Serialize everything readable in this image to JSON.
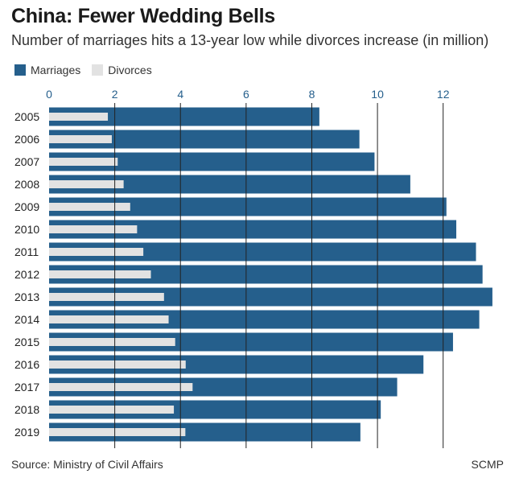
{
  "title": "China: Fewer Wedding Bells",
  "subtitle": "Number of marriages hits a 13-year low while divorces increase (in million)",
  "source": "Source: Ministry of Civil Affairs",
  "credit": "SCMP",
  "colors": {
    "marriages": "#255f8c",
    "divorces": "#e2e2e2",
    "gridline": "#222222",
    "tick_text": "#255f8c",
    "category_text": "#222222"
  },
  "chart_data": {
    "type": "bar",
    "orientation": "horizontal",
    "title": "China: Fewer Wedding Bells",
    "xlabel": "",
    "ylabel": "",
    "xlim": [
      0,
      13.6
    ],
    "ticks": [
      0,
      2,
      4,
      6,
      8,
      10,
      12
    ],
    "tick_labels": [
      "0",
      "2",
      "4",
      "6",
      "8",
      "10",
      "12"
    ],
    "grid": true,
    "legend_position": "top-left",
    "categories": [
      "2005",
      "2006",
      "2007",
      "2008",
      "2009",
      "2010",
      "2011",
      "2012",
      "2013",
      "2014",
      "2015",
      "2016",
      "2017",
      "2018",
      "2019"
    ],
    "series": [
      {
        "name": "Marriages",
        "values": [
          8.23,
          9.45,
          9.91,
          11.0,
          12.1,
          12.4,
          13.0,
          13.2,
          13.5,
          13.1,
          12.3,
          11.4,
          10.6,
          10.1,
          9.48
        ]
      },
      {
        "name": "Divorces",
        "values": [
          1.79,
          1.91,
          2.09,
          2.27,
          2.47,
          2.68,
          2.87,
          3.1,
          3.5,
          3.64,
          3.84,
          4.16,
          4.37,
          3.8,
          4.15
        ]
      }
    ]
  }
}
